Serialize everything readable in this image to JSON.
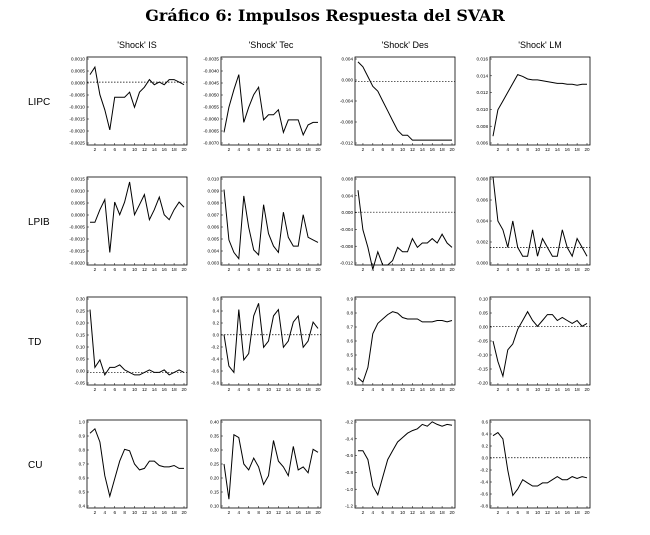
{
  "title": "Gráfico 6: Impulsos Respuesta del SVAR",
  "columns": [
    "'Shock' IS",
    "'Shock' Tec",
    "'Shock' Des",
    "'Shock' LM"
  ],
  "rows": [
    "LIPC",
    "LPIB",
    "TD",
    "CU"
  ],
  "chart_data": [
    {
      "type": "line",
      "row": "LIPC",
      "col": "'Shock' IS",
      "x_ticks": [
        2,
        4,
        6,
        8,
        10,
        12,
        14,
        16,
        18,
        20
      ],
      "y_ticks": [
        "0.0010",
        "0.0005",
        "0.0000",
        "-0.0005",
        "-0.0010",
        "-0.0015",
        "-0.0020",
        "-0.0025"
      ],
      "ylim": [
        -0.0025,
        0.001
      ],
      "zero_line": 0.0,
      "values": [
        0.0003,
        0.0006,
        -0.0005,
        -0.0011,
        -0.0019,
        -0.0006,
        -0.0006,
        -0.0006,
        -0.0004,
        -0.001,
        -0.0004,
        -0.0002,
        0.0001,
        -0.0001,
        0.0,
        -0.0001,
        0.0001,
        0.0001,
        0.0,
        -0.0001
      ]
    },
    {
      "type": "line",
      "row": "LIPC",
      "col": "'Shock' Tec",
      "x_ticks": [
        2,
        4,
        6,
        8,
        10,
        12,
        14,
        16,
        18,
        20
      ],
      "y_ticks": [
        "-0.0035",
        "-0.0040",
        "-0.0045",
        "-0.0050",
        "-0.0055",
        "-0.0060",
        "-0.0065",
        "-0.0070"
      ],
      "ylim": [
        -0.007,
        -0.0035
      ],
      "zero_line": null,
      "values": [
        -0.0065,
        -0.0055,
        -0.0048,
        -0.0042,
        -0.0061,
        -0.0055,
        -0.005,
        -0.0047,
        -0.006,
        -0.0058,
        -0.0058,
        -0.0056,
        -0.0065,
        -0.006,
        -0.006,
        -0.006,
        -0.0066,
        -0.0062,
        -0.0061,
        -0.0061
      ]
    },
    {
      "type": "line",
      "row": "LIPC",
      "col": "'Shock' Des",
      "x_ticks": [
        2,
        4,
        6,
        8,
        10,
        12,
        14,
        16,
        18,
        20
      ],
      "y_ticks": [
        "0.004",
        "0.000",
        "-0.004",
        "-0.008",
        "-0.012"
      ],
      "ylim": [
        -0.013,
        0.005
      ],
      "zero_line": 0.0,
      "values": [
        0.004,
        0.003,
        0.001,
        -0.001,
        -0.002,
        -0.004,
        -0.006,
        -0.008,
        -0.01,
        -0.011,
        -0.011,
        -0.012,
        -0.012,
        -0.012,
        -0.012,
        -0.012,
        -0.012,
        -0.012,
        -0.012,
        -0.012
      ]
    },
    {
      "type": "line",
      "row": "LIPC",
      "col": "'Shock' LM",
      "x_ticks": [
        2,
        4,
        6,
        8,
        10,
        12,
        14,
        16,
        18,
        20
      ],
      "y_ticks": [
        "0.016",
        "0.014",
        "0.012",
        "0.010",
        "0.008",
        "0.006"
      ],
      "ylim": [
        0.006,
        0.016
      ],
      "zero_line": null,
      "values": [
        0.007,
        0.01,
        0.011,
        0.012,
        0.013,
        0.014,
        0.0138,
        0.0135,
        0.0134,
        0.0134,
        0.0133,
        0.0132,
        0.0131,
        0.013,
        0.013,
        0.0129,
        0.0129,
        0.0128,
        0.0129,
        0.0129
      ]
    },
    {
      "type": "line",
      "row": "LPIB",
      "col": "'Shock' IS",
      "x_ticks": [
        2,
        4,
        6,
        8,
        10,
        12,
        14,
        16,
        18,
        20
      ],
      "y_ticks": [
        "0.0015",
        "0.0010",
        "0.0005",
        "0.0000",
        "-0.0005",
        "-0.0010",
        "-0.0015",
        "-0.0020"
      ],
      "ylim": [
        -0.002,
        0.0015
      ],
      "zero_line": null,
      "values": [
        -0.0003,
        -0.0003,
        0.0002,
        0.0006,
        -0.0015,
        0.0005,
        0.0,
        0.0005,
        0.0013,
        0.0,
        0.0004,
        0.0008,
        -0.0002,
        0.0002,
        0.0007,
        0.0,
        -0.0002,
        0.0002,
        0.0005,
        0.0003
      ]
    },
    {
      "type": "line",
      "row": "LPIB",
      "col": "'Shock' Tec",
      "x_ticks": [
        2,
        4,
        6,
        8,
        10,
        12,
        14,
        16,
        18,
        20
      ],
      "y_ticks": [
        "0.010",
        "0.009",
        "0.008",
        "0.007",
        "0.006",
        "0.005",
        "0.004",
        "0.003"
      ],
      "ylim": [
        0.003,
        0.01
      ],
      "zero_line": null,
      "values": [
        0.009,
        0.005,
        0.004,
        0.0035,
        0.0085,
        0.006,
        0.0042,
        0.0038,
        0.0078,
        0.0055,
        0.0045,
        0.004,
        0.0072,
        0.0052,
        0.0045,
        0.0045,
        0.007,
        0.0052,
        0.005,
        0.0048
      ]
    },
    {
      "type": "line",
      "row": "LPIB",
      "col": "'Shock' Des",
      "x_ticks": [
        2,
        4,
        6,
        8,
        10,
        12,
        14,
        16,
        18,
        20
      ],
      "y_ticks": [
        "0.008",
        "0.004",
        "0.000",
        "-0.004",
        "-0.008",
        "-0.012"
      ],
      "ylim": [
        -0.012,
        0.008
      ],
      "zero_line": 0.0,
      "values": [
        0.005,
        -0.004,
        -0.008,
        -0.013,
        -0.009,
        -0.012,
        -0.012,
        -0.011,
        -0.008,
        -0.009,
        -0.009,
        -0.006,
        -0.008,
        -0.007,
        -0.007,
        -0.006,
        -0.007,
        -0.005,
        -0.007,
        -0.008
      ]
    },
    {
      "type": "line",
      "row": "LPIB",
      "col": "'Shock' LM",
      "x_ticks": [
        2,
        4,
        6,
        8,
        10,
        12,
        14,
        16,
        18,
        20
      ],
      "y_ticks": [
        "0.008",
        "0.006",
        "0.004",
        "0.002",
        "0.000"
      ],
      "ylim": [
        -0.002,
        0.008
      ],
      "zero_line": 0.0,
      "values": [
        0.008,
        0.003,
        0.002,
        0.0,
        0.003,
        0.0,
        -0.001,
        -0.001,
        0.002,
        -0.001,
        0.001,
        0.0,
        -0.001,
        -0.001,
        0.002,
        0.0,
        -0.001,
        0.001,
        0.0,
        -0.001
      ]
    },
    {
      "type": "line",
      "row": "TD",
      "col": "'Shock' IS",
      "x_ticks": [
        2,
        4,
        6,
        8,
        10,
        12,
        14,
        16,
        18,
        20
      ],
      "y_ticks": [
        "0.30",
        "0.25",
        "0.20",
        "0.15",
        "0.10",
        "0.05",
        "0.00",
        "-0.05"
      ],
      "ylim": [
        -0.05,
        0.3
      ],
      "zero_line": 0.0,
      "values": [
        0.25,
        0.02,
        0.05,
        -0.01,
        0.02,
        0.02,
        0.03,
        0.01,
        0.0,
        -0.01,
        -0.01,
        0.0,
        0.01,
        0.0,
        0.0,
        0.01,
        -0.01,
        0.0,
        0.01,
        0.0
      ]
    },
    {
      "type": "line",
      "row": "TD",
      "col": "'Shock' Tec",
      "x_ticks": [
        2,
        4,
        6,
        8,
        10,
        12,
        14,
        16,
        18,
        20
      ],
      "y_ticks": [
        "0.6",
        "0.4",
        "0.2",
        "0.0",
        "-0.2",
        "-0.4",
        "-0.6",
        "-0.8"
      ],
      "ylim": [
        -0.8,
        0.6
      ],
      "zero_line": 0.0,
      "values": [
        0.0,
        -0.5,
        -0.6,
        0.4,
        -0.4,
        -0.3,
        0.3,
        0.5,
        -0.2,
        -0.1,
        0.3,
        0.4,
        -0.2,
        -0.1,
        0.2,
        0.3,
        -0.2,
        -0.1,
        0.2,
        0.1
      ]
    },
    {
      "type": "line",
      "row": "TD",
      "col": "'Shock' Des",
      "x_ticks": [
        2,
        4,
        6,
        8,
        10,
        12,
        14,
        16,
        18,
        20
      ],
      "y_ticks": [
        "0.9",
        "0.8",
        "0.7",
        "0.6",
        "0.5",
        "0.4",
        "0.3"
      ],
      "ylim": [
        0.3,
        0.9
      ],
      "zero_line": null,
      "values": [
        0.35,
        0.32,
        0.42,
        0.65,
        0.72,
        0.75,
        0.78,
        0.8,
        0.79,
        0.76,
        0.75,
        0.75,
        0.75,
        0.73,
        0.73,
        0.73,
        0.74,
        0.74,
        0.73,
        0.74
      ]
    },
    {
      "type": "line",
      "row": "TD",
      "col": "'Shock' LM",
      "x_ticks": [
        2,
        4,
        6,
        8,
        10,
        12,
        14,
        16,
        18,
        20
      ],
      "y_ticks": [
        "0.10",
        "0.05",
        "0.00",
        "-0.05",
        "-0.10",
        "-0.15",
        "-0.20"
      ],
      "ylim": [
        -0.2,
        0.1
      ],
      "zero_line": 0.0,
      "values": [
        -0.05,
        -0.12,
        -0.17,
        -0.08,
        -0.06,
        -0.01,
        0.02,
        0.05,
        0.02,
        0.0,
        0.02,
        0.04,
        0.04,
        0.02,
        0.03,
        0.02,
        0.01,
        0.02,
        0.0,
        0.01
      ]
    },
    {
      "type": "line",
      "row": "CU",
      "col": "'Shock' IS",
      "x_ticks": [
        2,
        4,
        6,
        8,
        10,
        12,
        14,
        16,
        18,
        20
      ],
      "y_ticks": [
        "1.0",
        "0.9",
        "0.8",
        "0.7",
        "0.6",
        "0.5",
        "0.4"
      ],
      "ylim": [
        0.4,
        1.0
      ],
      "zero_line": null,
      "values": [
        0.91,
        0.94,
        0.85,
        0.62,
        0.48,
        0.6,
        0.72,
        0.8,
        0.79,
        0.7,
        0.66,
        0.67,
        0.72,
        0.72,
        0.69,
        0.68,
        0.68,
        0.69,
        0.67,
        0.67
      ]
    },
    {
      "type": "line",
      "row": "CU",
      "col": "'Shock' Tec",
      "x_ticks": [
        2,
        4,
        6,
        8,
        10,
        12,
        14,
        16,
        18,
        20
      ],
      "y_ticks": [
        "0.40",
        "0.35",
        "0.30",
        "0.25",
        "0.20",
        "0.15",
        "0.10"
      ],
      "ylim": [
        0.1,
        0.4
      ],
      "zero_line": null,
      "values": [
        0.25,
        0.13,
        0.35,
        0.34,
        0.25,
        0.23,
        0.27,
        0.24,
        0.18,
        0.21,
        0.33,
        0.26,
        0.24,
        0.21,
        0.31,
        0.23,
        0.24,
        0.22,
        0.3,
        0.29
      ]
    },
    {
      "type": "line",
      "row": "CU",
      "col": "'Shock' Des",
      "x_ticks": [
        2,
        4,
        6,
        8,
        10,
        12,
        14,
        16,
        18,
        20
      ],
      "y_ticks": [
        "-0.2",
        "-0.4",
        "-0.6",
        "-0.8",
        "-1.0",
        "-1.2"
      ],
      "ylim": [
        -1.2,
        -0.2
      ],
      "zero_line": null,
      "values": [
        -0.55,
        -0.55,
        -0.65,
        -0.95,
        -1.05,
        -0.85,
        -0.65,
        -0.55,
        -0.45,
        -0.4,
        -0.35,
        -0.32,
        -0.3,
        -0.25,
        -0.27,
        -0.22,
        -0.25,
        -0.27,
        -0.25,
        -0.26
      ]
    },
    {
      "type": "line",
      "row": "CU",
      "col": "'Shock' LM",
      "x_ticks": [
        2,
        4,
        6,
        8,
        10,
        12,
        14,
        16,
        18,
        20
      ],
      "y_ticks": [
        "0.6",
        "0.4",
        "0.2",
        "0.0",
        "-0.2",
        "-0.4",
        "-0.6",
        "-0.8"
      ],
      "ylim": [
        -0.8,
        0.6
      ],
      "zero_line": 0.0,
      "values": [
        0.35,
        0.4,
        0.3,
        -0.2,
        -0.6,
        -0.5,
        -0.35,
        -0.4,
        -0.45,
        -0.45,
        -0.4,
        -0.4,
        -0.35,
        -0.3,
        -0.35,
        -0.35,
        -0.3,
        -0.33,
        -0.3,
        -0.32
      ]
    }
  ]
}
